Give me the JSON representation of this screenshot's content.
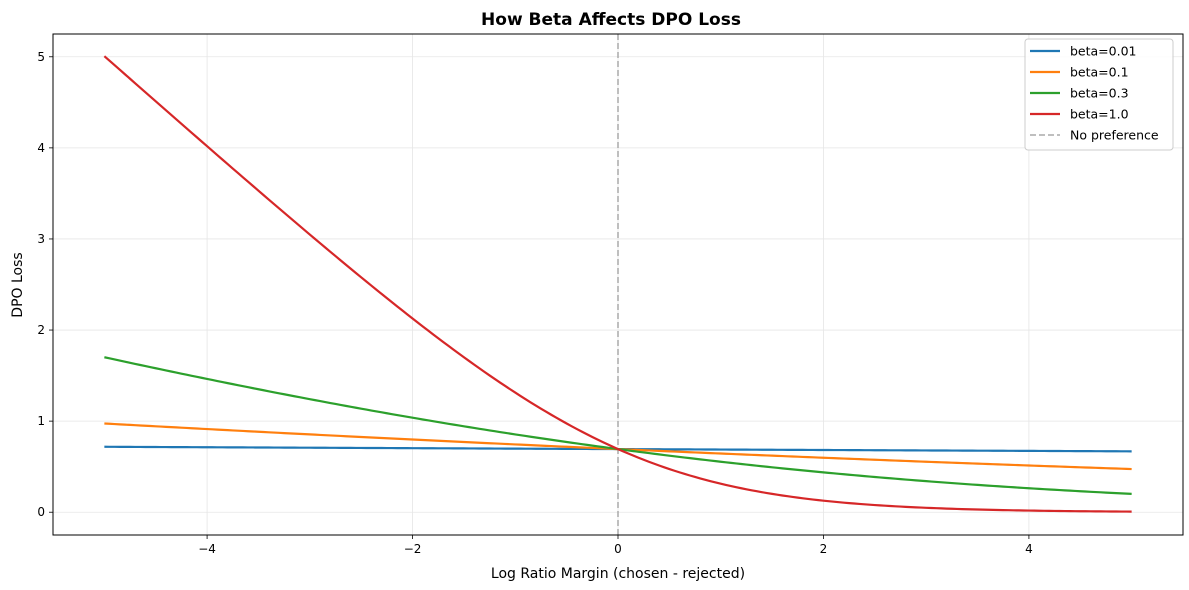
{
  "chart_data": {
    "type": "line",
    "title": "How Beta Affects DPO Loss",
    "xlabel": "Log Ratio Margin (chosen - rejected)",
    "ylabel": "DPO Loss",
    "xlim": [
      -5.5,
      5.5
    ],
    "ylim": [
      -0.25,
      5.25
    ],
    "x_range": [
      -5,
      5
    ],
    "x_ticks": [
      -4,
      -2,
      0,
      2,
      4
    ],
    "x_tick_labels": [
      "−4",
      "−2",
      "0",
      "2",
      "4"
    ],
    "y_ticks": [
      0,
      1,
      2,
      3,
      4,
      5
    ],
    "y_tick_labels": [
      "0",
      "1",
      "2",
      "3",
      "4",
      "5"
    ],
    "grid": true,
    "legend_position": "top-right",
    "function": "-log(sigmoid(beta * x))",
    "series": [
      {
        "name": "beta=0.01",
        "beta": 0.01,
        "color": "#1f77b4",
        "endpoints": [
          0.718,
          0.669
        ]
      },
      {
        "name": "beta=0.1",
        "beta": 0.1,
        "color": "#ff7f0e",
        "endpoints": [
          0.974,
          0.474
        ]
      },
      {
        "name": "beta=0.3",
        "beta": 0.3,
        "color": "#2ca02c",
        "endpoints": [
          1.701,
          0.201
        ]
      },
      {
        "name": "beta=1.0",
        "beta": 1.0,
        "color": "#d62728",
        "endpoints": [
          5.007,
          0.007
        ]
      }
    ],
    "reference_line": {
      "name": "No preference",
      "x": 0,
      "color": "#aaaaaa",
      "style": "dashed"
    }
  }
}
